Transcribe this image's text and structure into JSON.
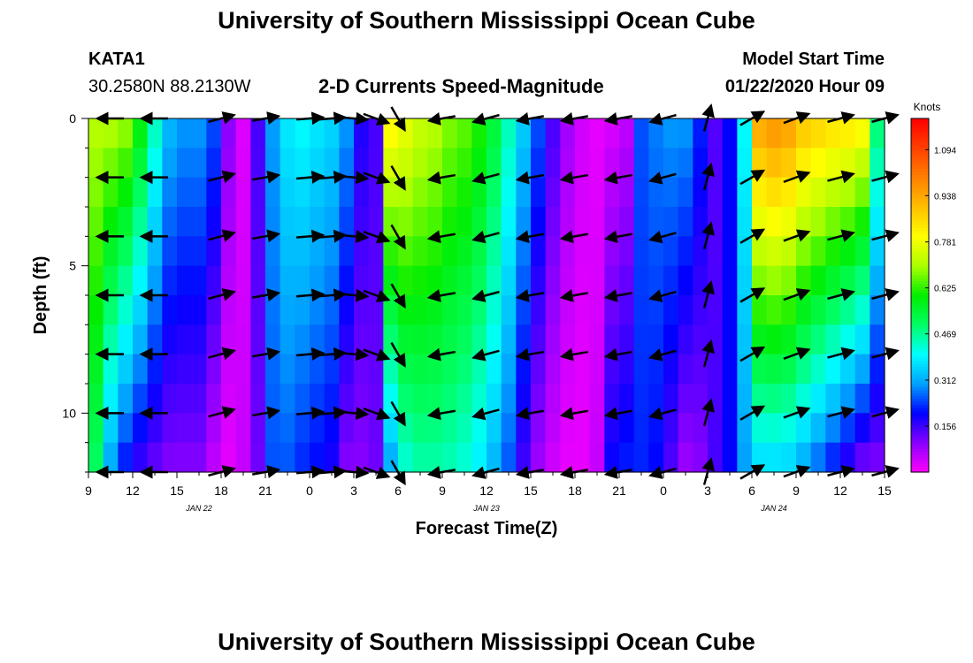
{
  "header": {
    "title": "University of Southern Mississippi Ocean Cube",
    "station": "KATA1",
    "coords": "30.2580N 88.2130W",
    "subtitle": "2-D Currents Speed-Magnitude",
    "model_start_label": "Model Start Time",
    "model_start_value": "01/22/2020 Hour 09"
  },
  "footer": {
    "title": "University of Southern Mississippi Ocean Cube"
  },
  "chart_data": {
    "type": "heatmap",
    "title": "2-D Currents Speed-Magnitude",
    "xlabel": "Forecast Time(Z)",
    "ylabel": "Depth (ft)",
    "x_unit": "hours since 01/22/2020 09Z",
    "xlim": [
      0,
      54
    ],
    "ylim": [
      0,
      12
    ],
    "y_ticks": [
      "0",
      "5",
      "10"
    ],
    "y_tick_values": [
      0,
      5,
      10
    ],
    "x_ticks": [
      "9",
      "12",
      "15",
      "18",
      "21",
      "0",
      "3",
      "6",
      "9",
      "12",
      "15",
      "18",
      "21",
      "0",
      "3",
      "6",
      "9",
      "12",
      "15"
    ],
    "date_labels": [
      {
        "label": "JAN  22",
        "hour": 7.5
      },
      {
        "label": "JAN  23",
        "hour": 27
      },
      {
        "label": "JAN  24",
        "hour": 46.5
      }
    ],
    "colorbar": {
      "label": "Knots",
      "tick_labels": [
        "1.094",
        "0.938",
        "0.781",
        "0.625",
        "0.469",
        "0.312",
        "0.156"
      ],
      "tick_values": [
        1.094,
        0.938,
        0.781,
        0.625,
        0.469,
        0.312,
        0.156
      ],
      "range": [
        0,
        1.2
      ],
      "colors": [
        "#ff00ff",
        "#8a00ff",
        "#0000ff",
        "#00a0ff",
        "#00ffff",
        "#00ff66",
        "#00ee00",
        "#aaff00",
        "#ffff00",
        "#ffc000",
        "#ff8000",
        "#ff4000",
        "#ff0000"
      ]
    },
    "depth_rows": [
      0.5,
      1.5,
      2.5,
      3.5,
      4.5,
      5.5,
      6.5,
      7.5,
      8.5,
      9.5,
      10.5,
      11.5
    ],
    "time_profile_hours": [
      0,
      1,
      2,
      3,
      4,
      5,
      6,
      7,
      8,
      9,
      10,
      11,
      12,
      13,
      14,
      15,
      16,
      17,
      18,
      19,
      20,
      21,
      22,
      23,
      24,
      25,
      26,
      27,
      28,
      29,
      30,
      31,
      32,
      33,
      34,
      35,
      36,
      37,
      38,
      39,
      40,
      41,
      42,
      43,
      44,
      45,
      46,
      47,
      48,
      49,
      50,
      51,
      52,
      53,
      54
    ],
    "surface_speed_knots": [
      0.72,
      0.72,
      0.7,
      0.6,
      0.45,
      0.33,
      0.3,
      0.3,
      0.25,
      0.1,
      0.03,
      0.15,
      0.3,
      0.38,
      0.4,
      0.38,
      0.36,
      0.3,
      0.18,
      0.15,
      0.82,
      0.78,
      0.74,
      0.72,
      0.68,
      0.66,
      0.62,
      0.55,
      0.45,
      0.35,
      0.25,
      0.15,
      0.08,
      0.04,
      0.02,
      0.03,
      0.05,
      0.25,
      0.28,
      0.3,
      0.3,
      0.22,
      0.14,
      0.2,
      0.4,
      0.95,
      0.98,
      0.96,
      0.9,
      0.88,
      0.86,
      0.85,
      0.82,
      0.5,
      0.3
    ],
    "deep_speed_knots": [
      0.5,
      0.3,
      0.2,
      0.15,
      0.12,
      0.1,
      0.1,
      0.1,
      0.05,
      0.02,
      0.05,
      0.12,
      0.25,
      0.25,
      0.22,
      0.2,
      0.18,
      0.1,
      0.1,
      0.12,
      0.3,
      0.42,
      0.45,
      0.45,
      0.44,
      0.42,
      0.38,
      0.32,
      0.25,
      0.15,
      0.08,
      0.04,
      0.02,
      0.02,
      0.05,
      0.2,
      0.22,
      0.22,
      0.2,
      0.14,
      0.08,
      0.1,
      0.15,
      0.2,
      0.3,
      0.35,
      0.35,
      0.34,
      0.3,
      0.25,
      0.2,
      0.15,
      0.1,
      0.1,
      0.1
    ],
    "vector_times_hours": [
      1.5,
      4.5,
      9,
      12,
      15,
      16.5,
      18,
      19.5,
      21,
      24,
      27,
      30,
      33,
      36,
      39,
      42,
      45,
      48,
      51,
      54
    ],
    "vector_depths_ft": [
      0,
      2,
      4,
      6,
      8,
      10,
      12
    ],
    "vector_direction_deg": [
      180,
      180,
      15,
      10,
      5,
      5,
      -5,
      -20,
      -60,
      190,
      195,
      190,
      190,
      190,
      195,
      75,
      30,
      20,
      15,
      15
    ],
    "labels": {
      "knots": "Knots"
    }
  }
}
